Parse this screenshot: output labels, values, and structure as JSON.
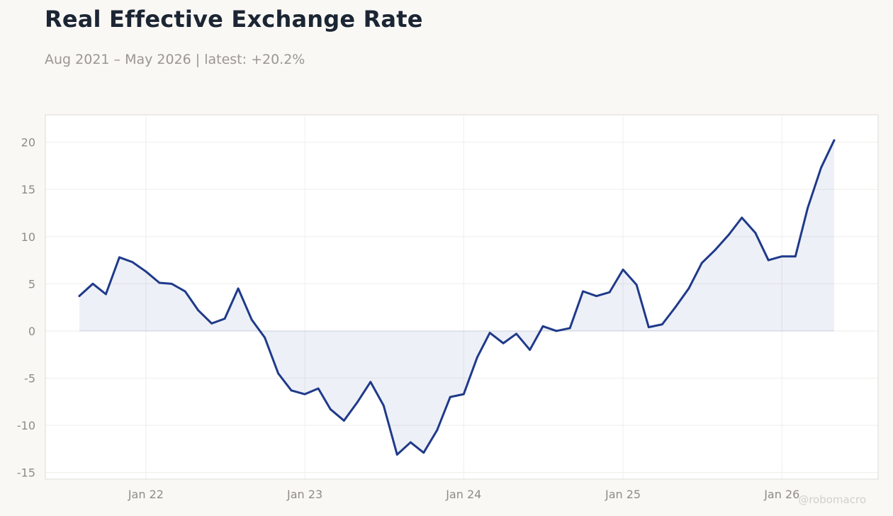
{
  "header": {
    "title": "Real Effective Exchange Rate",
    "subtitle": "Aug 2021 – May 2026 | latest: +20.2%"
  },
  "watermark": "@robomacro",
  "colors": {
    "line": "#1f3a8a",
    "fill": "#1f3a8a",
    "background": "#f9f8f5",
    "plot_background": "#ffffff",
    "grid": "#efeeec"
  },
  "chart_data": {
    "type": "area",
    "title": "Real Effective Exchange Rate",
    "subtitle": "Aug 2021 – May 2026 | latest: +20.2%",
    "xlabel": "",
    "ylabel": "",
    "ylim": [
      -15.7,
      22.9
    ],
    "xlim": [
      "2021-05-15",
      "2026-08-10"
    ],
    "yticks": [
      -15,
      -10,
      -5,
      0,
      5,
      10,
      15,
      20
    ],
    "yticklabels": [
      "-15",
      "-10",
      "-5",
      "0",
      "5",
      "10",
      "15",
      "20"
    ],
    "xticks": [
      "2022-01-01",
      "2023-01-01",
      "2024-01-01",
      "2025-01-01",
      "2026-01-01"
    ],
    "xticklabels": [
      "Jan 22",
      "Jan 23",
      "Jan 24",
      "Jan 25",
      "Jan 26"
    ],
    "grid": true,
    "legend": "none",
    "x": [
      "2021-08-01",
      "2021-09-01",
      "2021-10-01",
      "2021-11-01",
      "2021-12-01",
      "2022-01-01",
      "2022-02-01",
      "2022-03-01",
      "2022-04-01",
      "2022-05-01",
      "2022-06-01",
      "2022-07-01",
      "2022-08-01",
      "2022-09-01",
      "2022-10-01",
      "2022-11-01",
      "2022-12-01",
      "2023-01-01",
      "2023-02-01",
      "2023-03-01",
      "2023-04-01",
      "2023-05-01",
      "2023-06-01",
      "2023-07-01",
      "2023-08-01",
      "2023-09-01",
      "2023-10-01",
      "2023-11-01",
      "2023-12-01",
      "2024-01-01",
      "2024-02-01",
      "2024-03-01",
      "2024-04-01",
      "2024-05-01",
      "2024-06-01",
      "2024-07-01",
      "2024-08-01",
      "2024-09-01",
      "2024-10-01",
      "2024-11-01",
      "2024-12-01",
      "2025-01-01",
      "2025-02-01",
      "2025-03-01",
      "2025-04-01",
      "2025-05-01",
      "2025-06-01",
      "2025-07-01",
      "2025-08-01",
      "2025-09-01",
      "2025-10-01",
      "2025-11-01",
      "2025-12-01",
      "2026-01-01",
      "2026-02-01",
      "2026-03-01",
      "2026-04-01",
      "2026-05-01"
    ],
    "series": [
      {
        "values": [
          3.7,
          5.0,
          3.9,
          7.8,
          7.3,
          6.3,
          5.1,
          5.0,
          4.2,
          2.2,
          0.8,
          1.3,
          4.5,
          1.2,
          -0.7,
          -4.5,
          -6.3,
          -6.7,
          -6.1,
          -8.3,
          -9.5,
          -7.6,
          -5.4,
          -7.9,
          -13.1,
          -11.8,
          -12.9,
          -10.5,
          -7.0,
          -6.7,
          -2.8,
          -0.2,
          -1.3,
          -0.3,
          -2.0,
          0.5,
          0.0,
          0.3,
          4.2,
          3.7,
          4.1,
          6.5,
          4.9,
          0.4,
          0.7,
          2.5,
          4.5,
          7.2,
          8.6,
          10.2,
          12.0,
          10.4,
          7.5,
          7.9,
          7.9,
          13.0,
          17.3,
          20.2
        ]
      }
    ]
  }
}
